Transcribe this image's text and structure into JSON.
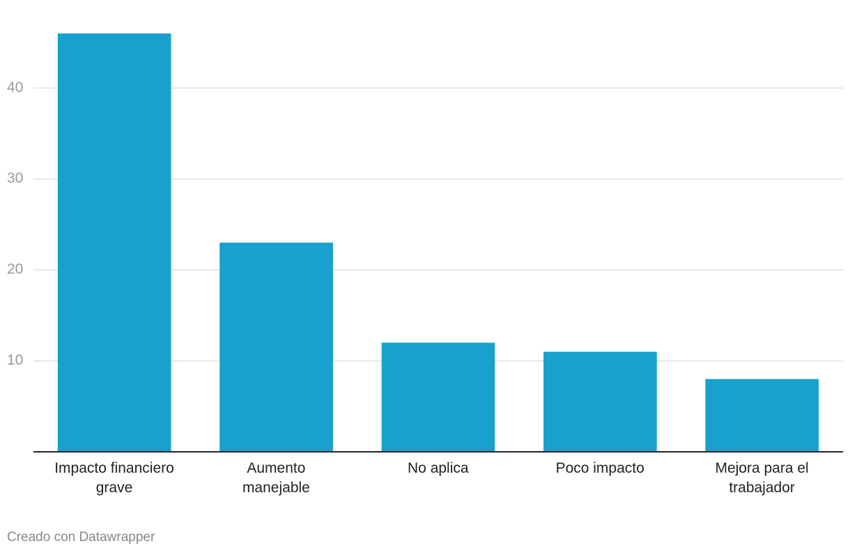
{
  "chart_data": {
    "type": "bar",
    "categories": [
      "Impacto financiero\ngrave",
      "Aumento\nmanejable",
      "No aplica",
      "Poco impacto",
      "Mejora para el\ntrabajador"
    ],
    "values": [
      46,
      23,
      12,
      11,
      8
    ],
    "color": "#18a1cd",
    "ylim": [
      0,
      46
    ],
    "yticks": [
      10,
      20,
      30,
      40
    ],
    "grid": true,
    "footer": "Creado con Datawrapper"
  }
}
